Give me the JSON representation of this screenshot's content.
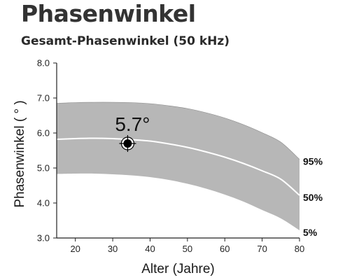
{
  "title": "Phasenwinkel",
  "subtitle": "Gesamt-Phasenwinkel (50 kHz)",
  "colors": {
    "band": "#b7b7b7",
    "median_line": "#ffffff",
    "text": "#2a2a2a",
    "marker": "#000000"
  },
  "chart_data": {
    "type": "area",
    "xlabel": "Alter (Jahre)",
    "ylabel": "Phasenwinkel ( ° )",
    "xlim": [
      15,
      80
    ],
    "ylim": [
      3.0,
      8.0
    ],
    "x_ticks": [
      "20",
      "30",
      "40",
      "50",
      "60",
      "70",
      "80"
    ],
    "y_ticks": [
      "3.0",
      "4.0",
      "5.0",
      "6.0",
      "7.0",
      "8.0"
    ],
    "grid": false,
    "x": [
      15,
      20,
      25,
      30,
      35,
      40,
      45,
      50,
      55,
      60,
      65,
      70,
      75,
      80
    ],
    "series": [
      {
        "name": "95%",
        "values": [
          6.85,
          6.87,
          6.88,
          6.88,
          6.87,
          6.84,
          6.78,
          6.7,
          6.58,
          6.43,
          6.24,
          6.01,
          5.74,
          5.25
        ]
      },
      {
        "name": "50%",
        "values": [
          5.82,
          5.84,
          5.85,
          5.84,
          5.81,
          5.77,
          5.69,
          5.59,
          5.46,
          5.31,
          5.13,
          4.92,
          4.68,
          4.22
        ]
      },
      {
        "name": "5%",
        "values": [
          4.83,
          4.84,
          4.84,
          4.82,
          4.79,
          4.74,
          4.66,
          4.55,
          4.41,
          4.24,
          4.04,
          3.8,
          3.56,
          3.22
        ]
      }
    ],
    "highlight_point": {
      "x": 34,
      "y": 5.7,
      "label": "5.7°"
    }
  }
}
